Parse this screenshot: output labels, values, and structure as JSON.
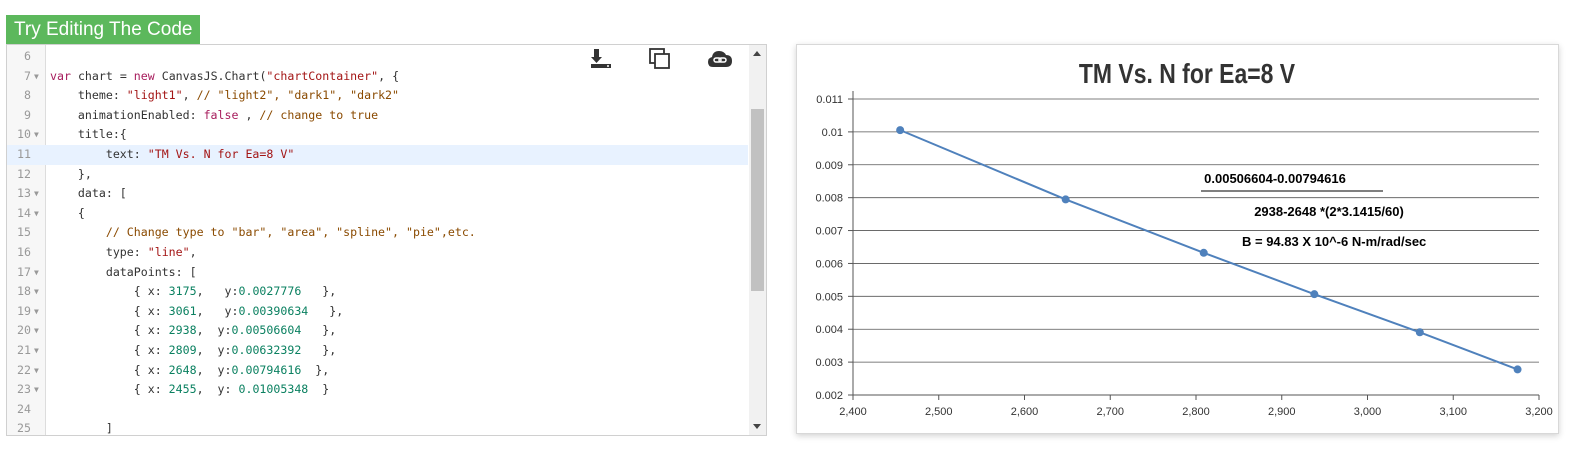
{
  "toolbar": {
    "try_label": "Try Editing The Code",
    "download_icon": "download-icon",
    "copy_icon": "copy-icon",
    "cloud_icon": "cloud-link-icon"
  },
  "editor": {
    "lines": [
      {
        "n": "6",
        "fold": false,
        "active": false,
        "tokens": []
      },
      {
        "n": "7",
        "fold": true,
        "active": false,
        "tokens": [
          [
            "kw",
            "var"
          ],
          [
            "",
            "chart = "
          ],
          [
            "kw",
            "new"
          ],
          [
            "",
            "CanvasJS.Chart("
          ],
          [
            "str",
            "\"chartContainer\""
          ],
          [
            "",
            ", {"
          ]
        ]
      },
      {
        "n": "8",
        "fold": false,
        "active": false,
        "tokens": [
          [
            "",
            "    theme: "
          ],
          [
            "str",
            "\"light1\""
          ],
          [
            "",
            ", "
          ],
          [
            "cmt",
            "// \"light2\", \"dark1\", \"dark2\""
          ]
        ]
      },
      {
        "n": "9",
        "fold": false,
        "active": false,
        "tokens": [
          [
            "",
            "    animationEnabled: "
          ],
          [
            "kw",
            "false"
          ],
          [
            "",
            ", "
          ],
          [
            "cmt",
            "// change to true"
          ]
        ]
      },
      {
        "n": "10",
        "fold": true,
        "active": false,
        "tokens": [
          [
            "",
            "    title:{"
          ]
        ]
      },
      {
        "n": "11",
        "fold": false,
        "active": true,
        "tokens": [
          [
            "",
            "        text: "
          ],
          [
            "str",
            "\"TM Vs. N for Ea=8 V\""
          ]
        ]
      },
      {
        "n": "12",
        "fold": false,
        "active": false,
        "tokens": [
          [
            "",
            "    },"
          ]
        ]
      },
      {
        "n": "13",
        "fold": true,
        "active": false,
        "tokens": [
          [
            "",
            "    data: ["
          ]
        ]
      },
      {
        "n": "14",
        "fold": true,
        "active": false,
        "tokens": [
          [
            "",
            "    {"
          ]
        ]
      },
      {
        "n": "15",
        "fold": false,
        "active": false,
        "tokens": [
          [
            "cmt",
            "        // Change type to \"bar\", \"area\", \"spline\", \"pie\",etc."
          ]
        ]
      },
      {
        "n": "16",
        "fold": false,
        "active": false,
        "tokens": [
          [
            "",
            "        type: "
          ],
          [
            "str",
            "\"line\""
          ],
          [
            "",
            ","
          ]
        ]
      },
      {
        "n": "17",
        "fold": true,
        "active": false,
        "tokens": [
          [
            "",
            "        dataPoints: ["
          ]
        ]
      },
      {
        "n": "18",
        "fold": true,
        "active": false,
        "tokens": [
          [
            "",
            "            { x: "
          ],
          [
            "num",
            "3175"
          ],
          [
            "",
            ",   y:"
          ],
          [
            "num",
            "0.0027776"
          ],
          [
            "",
            "   },"
          ]
        ]
      },
      {
        "n": "19",
        "fold": true,
        "active": false,
        "tokens": [
          [
            "",
            "            { x: "
          ],
          [
            "num",
            "3061"
          ],
          [
            "",
            ",   y:"
          ],
          [
            "num",
            "0.00390634"
          ],
          [
            "",
            "   },"
          ]
        ]
      },
      {
        "n": "20",
        "fold": true,
        "active": false,
        "tokens": [
          [
            "",
            "            { x: "
          ],
          [
            "num",
            "2938"
          ],
          [
            "",
            ",  y:"
          ],
          [
            "num",
            "0.00506604"
          ],
          [
            "",
            "   },"
          ]
        ]
      },
      {
        "n": "21",
        "fold": true,
        "active": false,
        "tokens": [
          [
            "",
            "            { x: "
          ],
          [
            "num",
            "2809"
          ],
          [
            "",
            ",  y:"
          ],
          [
            "num",
            "0.00632392"
          ],
          [
            "",
            "   },"
          ]
        ]
      },
      {
        "n": "22",
        "fold": true,
        "active": false,
        "tokens": [
          [
            "",
            "            { x: "
          ],
          [
            "num",
            "2648"
          ],
          [
            "",
            ",  y:"
          ],
          [
            "num",
            "0.00794616"
          ],
          [
            "",
            "  },"
          ]
        ]
      },
      {
        "n": "23",
        "fold": true,
        "active": false,
        "tokens": [
          [
            "",
            "            { x: "
          ],
          [
            "num",
            "2455"
          ],
          [
            "",
            ",  y: "
          ],
          [
            "num",
            "0.01005348"
          ],
          [
            "",
            "  }"
          ]
        ]
      },
      {
        "n": "24",
        "fold": false,
        "active": false,
        "tokens": []
      },
      {
        "n": "25",
        "fold": false,
        "active": false,
        "tokens": [
          [
            "",
            "        ]"
          ]
        ]
      }
    ]
  },
  "chart_data": {
    "type": "line",
    "title": "TM Vs. N for Ea=8 V",
    "x": [
      3175,
      3061,
      2938,
      2809,
      2648,
      2455
    ],
    "y": [
      0.0027776,
      0.00390634,
      0.00506604,
      0.00632392,
      0.00794616,
      0.01005348
    ],
    "xlim": [
      2400,
      3200
    ],
    "ylim": [
      0.002,
      0.011
    ],
    "xticks": [
      2400,
      2500,
      2600,
      2700,
      2800,
      2900,
      3000,
      3100,
      3200
    ],
    "xtick_labels": [
      "2,400",
      "2,500",
      "2,600",
      "2,700",
      "2,800",
      "2,900",
      "3,000",
      "3,100",
      "3,200"
    ],
    "yticks": [
      0.002,
      0.003,
      0.004,
      0.005,
      0.006,
      0.007,
      0.008,
      0.009,
      0.01,
      0.011
    ],
    "ytick_labels": [
      "0.002",
      "0.003",
      "0.004",
      "0.005",
      "0.006",
      "0.007",
      "0.008",
      "0.009",
      "0.01",
      "0.011"
    ],
    "grid": true,
    "line_color": "#4f81bc",
    "annotations": [
      "0.00506604-0.00794616",
      "2938-2648  *(2*3.1415/60)",
      "B =  94.83 X 10^-6  N-m/rad/sec"
    ]
  }
}
